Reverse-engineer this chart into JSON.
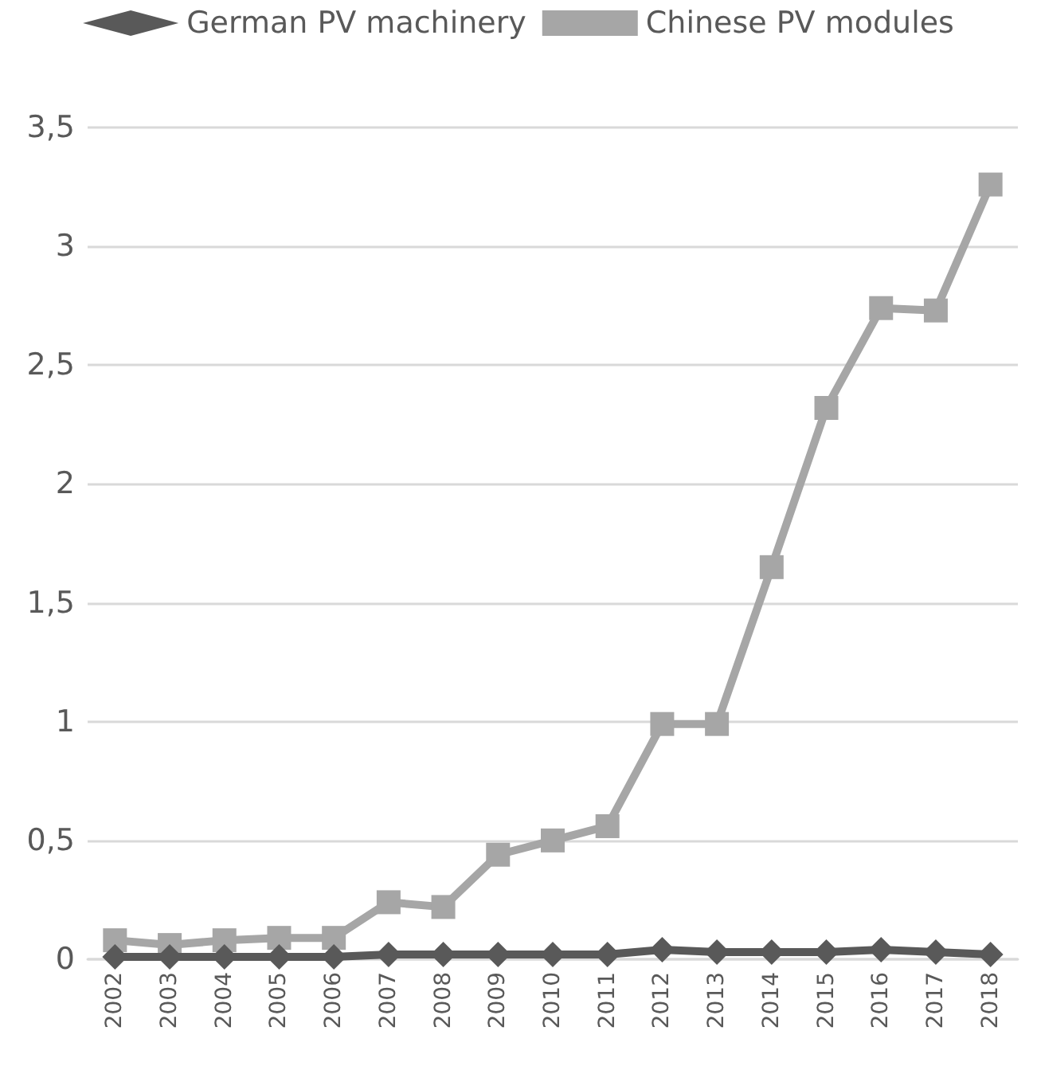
{
  "chart_data": {
    "type": "line",
    "categories": [
      "2002",
      "2003",
      "2004",
      "2005",
      "2006",
      "2007",
      "2008",
      "2009",
      "2010",
      "2011",
      "2012",
      "2013",
      "2014",
      "2015",
      "2016",
      "2017",
      "2018"
    ],
    "series": [
      {
        "name": "German PV machinery",
        "color": "#595959",
        "marker": "diamond",
        "values": [
          0.01,
          0.01,
          0.01,
          0.01,
          0.01,
          0.02,
          0.02,
          0.02,
          0.02,
          0.02,
          0.04,
          0.03,
          0.03,
          0.03,
          0.04,
          0.03,
          0.02
        ]
      },
      {
        "name": "Chinese PV modules",
        "color": "#a6a6a6",
        "marker": "square",
        "values": [
          0.08,
          0.06,
          0.08,
          0.09,
          0.09,
          0.24,
          0.22,
          0.44,
          0.5,
          0.56,
          0.99,
          0.99,
          1.65,
          2.32,
          2.74,
          2.73,
          3.26
        ]
      }
    ],
    "ylim": [
      0,
      3.5
    ],
    "yticks": [
      0,
      {
        "value": 0.5,
        "label": "0,5"
      },
      1,
      {
        "value": 1.5,
        "label": "1,5"
      },
      2,
      {
        "value": 2.5,
        "label": "2,5"
      },
      3,
      {
        "value": 3.5,
        "label": "3,5"
      }
    ],
    "grid": "y",
    "legend": "top",
    "line_style": "solid"
  }
}
